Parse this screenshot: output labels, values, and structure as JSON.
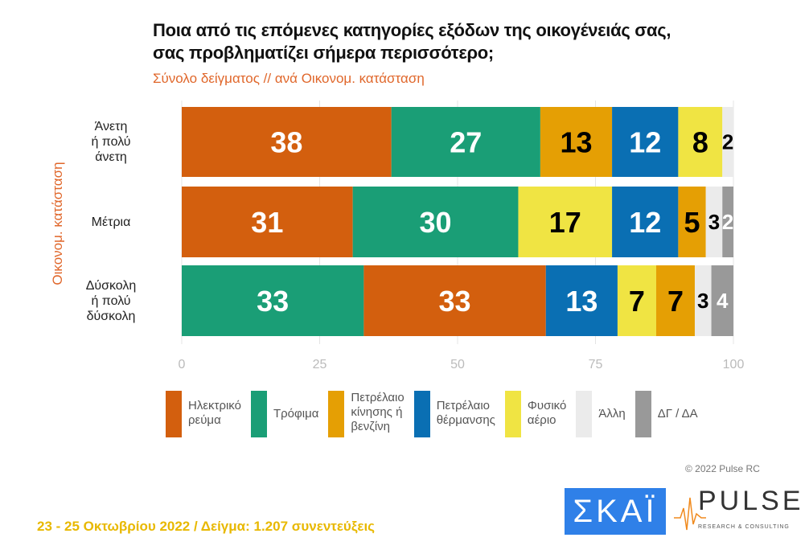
{
  "title_line1": "Ποια από τις επόμενες κατηγορίες εξόδων της οικογένειάς σας,",
  "title_line2": "σας προβληματίζει σήμερα περισσότερο;",
  "subtitle": "Σύνολο δείγματος // ανά Οικονομ. κατάσταση",
  "chart_data": {
    "type": "bar",
    "orientation": "horizontal",
    "stacked": true,
    "ylabel": "Οικονομ. κατάσταση",
    "xlim": [
      0,
      100
    ],
    "xticks": [
      "0",
      "25",
      "50",
      "75",
      "100"
    ],
    "grid": true,
    "legend_placement": "bottom",
    "categories": [
      {
        "lines": [
          "Άνετη",
          "ή πολύ",
          "άνετη"
        ]
      },
      {
        "lines": [
          "Μέτρια"
        ]
      },
      {
        "lines": [
          "Δύσκολη",
          "ή πολύ",
          "δύσκολη"
        ]
      }
    ],
    "series": [
      {
        "key": "elec",
        "name": "Ηλεκτρικό ρεύμα",
        "legend_lines": [
          "Ηλεκτρικό",
          "ρεύμα"
        ],
        "color": "#d35f0e",
        "label_color": "#ffffff"
      },
      {
        "key": "food",
        "name": "Τρόφιμα",
        "legend_lines": [
          "Τρόφιμα"
        ],
        "color": "#1a9e76",
        "label_color": "#ffffff"
      },
      {
        "key": "petrol",
        "name": "Πετρέλαιο κίνησης ή βενζίνη",
        "legend_lines": [
          "Πετρέλαιο",
          "κίνησης ή",
          "βενζίνη"
        ],
        "color": "#e59f04",
        "label_color": "#000000"
      },
      {
        "key": "heat",
        "name": "Πετρέλαιο θέρμανσης",
        "legend_lines": [
          "Πετρέλαιο",
          "θέρμανσης"
        ],
        "color": "#0a6fb3",
        "label_color": "#ffffff"
      },
      {
        "key": "gas",
        "name": "Φυσικό αέριο",
        "legend_lines": [
          "Φυσικό",
          "αέριο"
        ],
        "color": "#f0e443",
        "label_color": "#000000"
      },
      {
        "key": "other",
        "name": "Άλλη",
        "legend_lines": [
          "Άλλη"
        ],
        "color": "#ebebeb",
        "label_color": "#000000"
      },
      {
        "key": "dk",
        "name": "ΔΓ / ΔΑ",
        "legend_lines": [
          "ΔΓ / ΔΑ"
        ],
        "color": "#999999",
        "label_color": "#ffffff"
      }
    ],
    "rows": [
      {
        "segments": [
          [
            "elec",
            38
          ],
          [
            "food",
            27
          ],
          [
            "petrol",
            13
          ],
          [
            "heat",
            12
          ],
          [
            "gas",
            8
          ],
          [
            "other",
            2
          ]
        ]
      },
      {
        "segments": [
          [
            "elec",
            31
          ],
          [
            "food",
            30
          ],
          [
            "gas",
            17
          ],
          [
            "heat",
            12
          ],
          [
            "petrol",
            5
          ],
          [
            "other",
            3
          ],
          [
            "dk",
            2
          ]
        ]
      },
      {
        "segments": [
          [
            "food",
            33
          ],
          [
            "elec",
            33
          ],
          [
            "heat",
            13
          ],
          [
            "gas",
            7
          ],
          [
            "petrol",
            7
          ],
          [
            "other",
            3
          ],
          [
            "dk",
            4
          ]
        ]
      }
    ]
  },
  "footer": "23 - 25  Οκτωβρίου  2022  /  Δείγμα:  1.207 συνεντεύξεις",
  "copyright": "© 2022 Pulse RC",
  "logos": {
    "skai": "ΣΚΑΪ",
    "pulse": "PULSE",
    "pulse_sub": "RESEARCH & CONSULTING"
  }
}
